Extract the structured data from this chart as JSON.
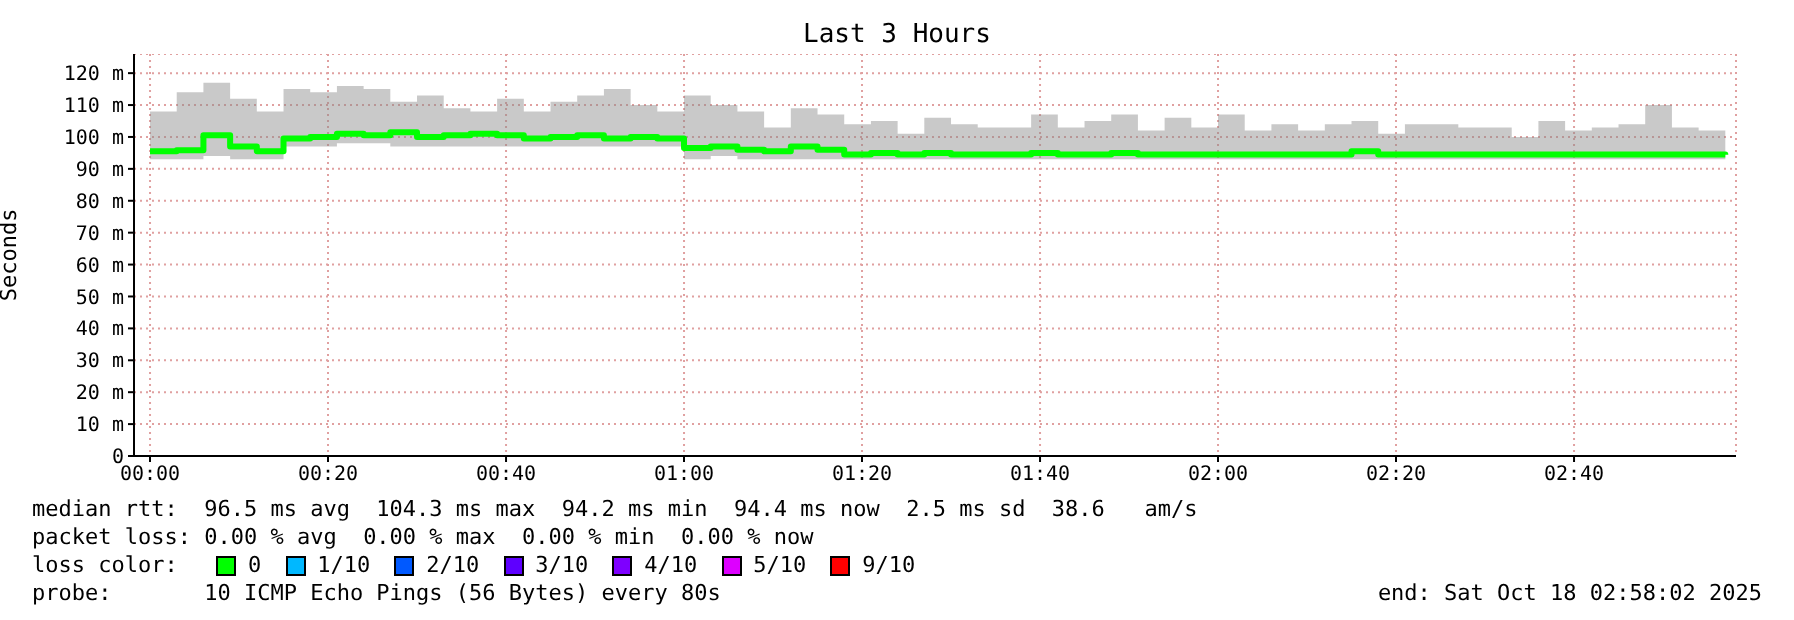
{
  "chart_data": {
    "type": "step",
    "title": "Last 3 Hours",
    "ylabel": "Seconds",
    "x": [
      0,
      0.05,
      0.1,
      0.15,
      0.2,
      0.25,
      0.3,
      0.35,
      0.4,
      0.45,
      0.5,
      0.55,
      0.6,
      0.65,
      0.7,
      0.75,
      0.8,
      0.85,
      0.9,
      0.95,
      1,
      1.05,
      1.1,
      1.15,
      1.2,
      1.25,
      1.3,
      1.35,
      1.4,
      1.45,
      1.5,
      1.55,
      1.6,
      1.65,
      1.7,
      1.75,
      1.8,
      1.85,
      1.9,
      1.95,
      2,
      2.05,
      2.1,
      2.15,
      2.2,
      2.25,
      2.3,
      2.35,
      2.4,
      2.45,
      2.5,
      2.55,
      2.6,
      2.65,
      2.7,
      2.75,
      2.8,
      2.85,
      2.9,
      2.95
    ],
    "series": [
      {
        "color": "#00ff00",
        "values": [
          95.5,
          95.8,
          100.5,
          97,
          95.5,
          99.5,
          100,
          101,
          100.5,
          101.5,
          100,
          100.5,
          101,
          100.5,
          99.5,
          100,
          100.5,
          99.5,
          100,
          99.5,
          96.5,
          97,
          96,
          95.5,
          97,
          96,
          94.5,
          95,
          94.5,
          95,
          94.5,
          94.5,
          94.5,
          95,
          94.5,
          94.5,
          95,
          94.5,
          94.5,
          94.5,
          94.5,
          94.5,
          94.5,
          94.5,
          94.5,
          95.5,
          94.5,
          94.5,
          94.5,
          94.5,
          94.5,
          94.5,
          94.5,
          94.5,
          94.5,
          94.5,
          94.5,
          94.5,
          94.5,
          94.4
        ],
        "lower": [
          93,
          93,
          94,
          93,
          93,
          97,
          97,
          98,
          98,
          97,
          97,
          97,
          97,
          97,
          97,
          97,
          97,
          97,
          97,
          97,
          93,
          94,
          93,
          93,
          93,
          93,
          93,
          93,
          93,
          93,
          93,
          93,
          93,
          93,
          93,
          93,
          93,
          93,
          93,
          93,
          93,
          93,
          93,
          93,
          93,
          93,
          93,
          93,
          93,
          93,
          93,
          93,
          93,
          93,
          93,
          93,
          93,
          93,
          93,
          93
        ],
        "upper": [
          108,
          114,
          117,
          112,
          108,
          115,
          114,
          116,
          115,
          111,
          113,
          109,
          108,
          112,
          108,
          111,
          113,
          115,
          110,
          108,
          113,
          110,
          108,
          103,
          109,
          107,
          104,
          105,
          101,
          106,
          104,
          103,
          103,
          107,
          103,
          105,
          107,
          102,
          106,
          103,
          107,
          102,
          104,
          102,
          104,
          105,
          101,
          104,
          104,
          103,
          103,
          100,
          105,
          102,
          103,
          104,
          110,
          103,
          102,
          100
        ]
      }
    ],
    "xlim": [
      -0.03,
      2.97
    ],
    "xticks": [
      {
        "value": 0,
        "label": "00:00"
      },
      {
        "value": 0.3333,
        "label": "00:20"
      },
      {
        "value": 0.6667,
        "label": "00:40"
      },
      {
        "value": 1,
        "label": "01:00"
      },
      {
        "value": 1.3333,
        "label": "01:20"
      },
      {
        "value": 1.6667,
        "label": "01:40"
      },
      {
        "value": 2,
        "label": "02:00"
      },
      {
        "value": 2.3333,
        "label": "02:20"
      },
      {
        "value": 2.6667,
        "label": "02:40"
      }
    ],
    "ylim": [
      0,
      126
    ],
    "yticks": [
      0,
      {
        "value": 10,
        "label": "10 m"
      },
      {
        "value": 20,
        "label": "20 m"
      },
      {
        "value": 30,
        "label": "30 m"
      },
      {
        "value": 40,
        "label": "40 m"
      },
      {
        "value": 50,
        "label": "50 m"
      },
      {
        "value": 60,
        "label": "60 m"
      },
      {
        "value": 70,
        "label": "70 m"
      },
      {
        "value": 80,
        "label": "80 m"
      },
      {
        "value": 90,
        "label": "90 m"
      },
      {
        "value": 100,
        "label": "100 m"
      },
      {
        "value": 110,
        "label": "110 m"
      },
      {
        "value": 120,
        "label": "120 m"
      }
    ],
    "grid": true,
    "annotations": [
      "median rtt:  96.5 ms avg  104.3 ms max  94.2 ms min  94.4 ms now  2.5 ms sd  38.6   am/s",
      "packet loss: 0.00 % avg  0.00 % max  0.00 % min  0.00 % now",
      "loss color:",
      "0",
      "1/10",
      "2/10",
      "3/10",
      "4/10",
      "5/10",
      "9/10",
      "probe:       10 ICMP Echo Pings (56 Bytes) every 80s",
      "end: Sat Oct 18 02:58:02 2025"
    ]
  }
}
